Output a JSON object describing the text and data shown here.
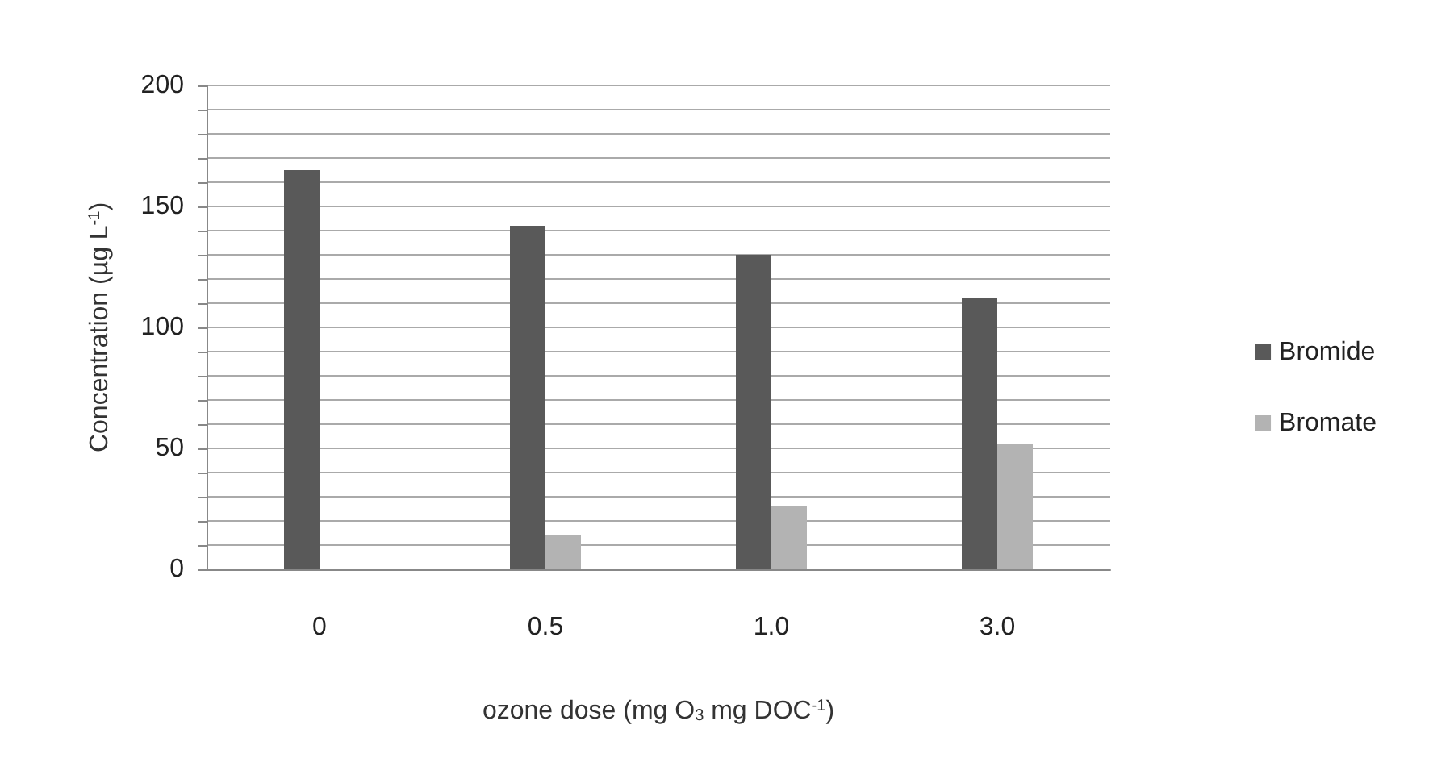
{
  "chart_data": {
    "type": "bar",
    "xlabel": "ozone dose (mg O$_{3}$ mg DOC$^{-1}$)",
    "ylabel": "Concentration (µg L$^{-1}$)",
    "categories": [
      "0",
      "0.5",
      "1.0",
      "3.0"
    ],
    "series": [
      {
        "name": "Bromide",
        "color": "#595959",
        "values": [
          165,
          142,
          130,
          112
        ]
      },
      {
        "name": "Bromate",
        "color": "#b3b3b3",
        "values": [
          0,
          14,
          26,
          52
        ]
      }
    ],
    "ylim": [
      0,
      200
    ],
    "yticks": [
      0,
      {
        "value": 10,
        "label": null
      },
      {
        "value": 20,
        "label": null
      },
      {
        "value": 30,
        "label": null
      },
      {
        "value": 40,
        "label": null
      },
      50,
      {
        "value": 60,
        "label": null
      },
      {
        "value": 70,
        "label": null
      },
      {
        "value": 80,
        "label": null
      },
      {
        "value": 90,
        "label": null
      },
      100,
      {
        "value": 110,
        "label": null
      },
      {
        "value": 120,
        "label": null
      },
      {
        "value": 130,
        "label": null
      },
      {
        "value": 140,
        "label": null
      },
      150,
      {
        "value": 160,
        "label": null
      },
      {
        "value": 170,
        "label": null
      },
      {
        "value": 180,
        "label": null
      },
      {
        "value": 190,
        "label": null
      },
      200
    ],
    "grid": "y",
    "legend": "right"
  }
}
